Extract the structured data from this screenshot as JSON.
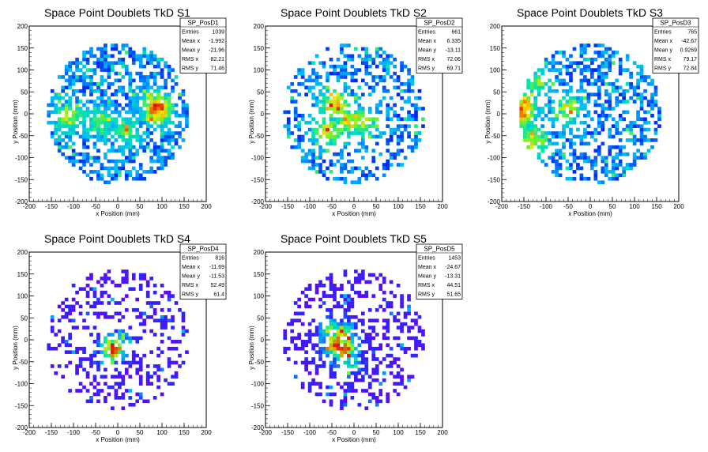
{
  "chart_data": [
    {
      "type": "heatmap",
      "title": "Space Point Doublets TkD S1",
      "xlabel": "x Position (mm)",
      "ylabel": "y Position (mm)",
      "xlim": [
        -200,
        200
      ],
      "ylim": [
        -200,
        200
      ],
      "xticks": [
        -200,
        -150,
        -100,
        -50,
        0,
        50,
        100,
        150,
        200
      ],
      "yticks": [
        -200,
        -150,
        -100,
        -50,
        0,
        50,
        100,
        150,
        200
      ],
      "palette": "rainbow",
      "stats": {
        "name": "SP_PosD1",
        "rows": [
          {
            "label": "Entries",
            "value": "1039"
          },
          {
            "label": "Mean x",
            "value": "-1.992"
          },
          {
            "label": "Mean y",
            "value": "-21.96"
          },
          {
            "label": "RMS x",
            "value": "82.21"
          },
          {
            "label": "RMS y",
            "value": "71.46"
          }
        ]
      },
      "hotspots": [
        [
          90,
          10,
          1.0
        ],
        [
          -110,
          -10,
          0.6
        ],
        [
          -40,
          -20,
          0.55
        ],
        [
          20,
          -40,
          0.5
        ],
        [
          80,
          20,
          0.7
        ]
      ],
      "density": 0.55
    },
    {
      "type": "heatmap",
      "title": "Space Point Doublets TkD S2",
      "xlabel": "x Position (mm)",
      "ylabel": "y Position (mm)",
      "xlim": [
        -200,
        200
      ],
      "ylim": [
        -200,
        200
      ],
      "xticks": [
        -200,
        -150,
        -100,
        -50,
        0,
        50,
        100,
        150,
        200
      ],
      "yticks": [
        -200,
        -150,
        -100,
        -50,
        0,
        50,
        100,
        150,
        200
      ],
      "palette": "rainbow",
      "stats": {
        "name": "SP_PosD2",
        "rows": [
          {
            "label": "Entries",
            "value": "661"
          },
          {
            "label": "Mean x",
            "value": "6.335"
          },
          {
            "label": "Mean y",
            "value": "-13.11"
          },
          {
            "label": "RMS x",
            "value": "72.06"
          },
          {
            "label": "RMS y",
            "value": "69.71"
          }
        ]
      },
      "hotspots": [
        [
          -40,
          20,
          0.8
        ],
        [
          -10,
          -15,
          0.7
        ],
        [
          20,
          -20,
          0.6
        ],
        [
          -60,
          -40,
          0.7
        ]
      ],
      "density": 0.4
    },
    {
      "type": "heatmap",
      "title": "Space Point Doublets TkD S3",
      "xlabel": "x Position (mm)",
      "ylabel": "y Position (mm)",
      "xlim": [
        -200,
        200
      ],
      "ylim": [
        -200,
        200
      ],
      "xticks": [
        -200,
        -150,
        -100,
        -50,
        0,
        50,
        100,
        150,
        200
      ],
      "yticks": [
        -200,
        -150,
        -100,
        -50,
        0,
        50,
        100,
        150,
        200
      ],
      "palette": "rainbow",
      "stats": {
        "name": "SP_PosD3",
        "rows": [
          {
            "label": "Entries",
            "value": "765"
          },
          {
            "label": "Mean x",
            "value": "-42.67"
          },
          {
            "label": "Mean y",
            "value": "0.9269"
          },
          {
            "label": "RMS x",
            "value": "79.17"
          },
          {
            "label": "RMS y",
            "value": "72.84"
          }
        ]
      },
      "hotspots": [
        [
          -160,
          0,
          1.0
        ],
        [
          -150,
          20,
          0.8
        ],
        [
          -130,
          -60,
          0.7
        ],
        [
          -50,
          10,
          0.6
        ],
        [
          -120,
          70,
          0.5
        ]
      ],
      "density": 0.45
    },
    {
      "type": "heatmap",
      "title": "Space Point Doublets TkD S4",
      "xlabel": "x Position (mm)",
      "ylabel": "y Position (mm)",
      "xlim": [
        -200,
        200
      ],
      "ylim": [
        -200,
        200
      ],
      "xticks": [
        -200,
        -150,
        -100,
        -50,
        0,
        50,
        100,
        150,
        200
      ],
      "yticks": [
        -200,
        -150,
        -100,
        -50,
        0,
        50,
        100,
        150,
        200
      ],
      "palette": "violet",
      "stats": {
        "name": "SP_PosD4",
        "rows": [
          {
            "label": "Entries",
            "value": "816"
          },
          {
            "label": "Mean x",
            "value": "-11.69"
          },
          {
            "label": "Mean y",
            "value": "-11.53"
          },
          {
            "label": "RMS x",
            "value": "52.49"
          },
          {
            "label": "RMS y",
            "value": "61.4"
          }
        ]
      },
      "hotspots": [
        [
          -10,
          -20,
          1.0
        ],
        [
          0,
          -10,
          0.7
        ],
        [
          -20,
          -30,
          0.5
        ]
      ],
      "density": 0.3
    },
    {
      "type": "heatmap",
      "title": "Space Point Doublets TkD S5",
      "xlabel": "x Position (mm)",
      "ylabel": "y Position (mm)",
      "xlim": [
        -200,
        200
      ],
      "ylim": [
        -200,
        200
      ],
      "xticks": [
        -200,
        -150,
        -100,
        -50,
        0,
        50,
        100,
        150,
        200
      ],
      "yticks": [
        -200,
        -150,
        -100,
        -50,
        0,
        50,
        100,
        150,
        200
      ],
      "palette": "violet",
      "stats": {
        "name": "SP_PosD5",
        "rows": [
          {
            "label": "Entries",
            "value": "1453"
          },
          {
            "label": "Mean x",
            "value": "-24.67"
          },
          {
            "label": "Mean y",
            "value": "-13.31"
          },
          {
            "label": "RMS x",
            "value": "44.51"
          },
          {
            "label": "RMS y",
            "value": "51.65"
          }
        ]
      },
      "hotspots": [
        [
          -40,
          -10,
          1.0
        ],
        [
          -30,
          10,
          0.9
        ],
        [
          -20,
          -20,
          0.95
        ],
        [
          -50,
          20,
          0.7
        ],
        [
          -10,
          -50,
          0.6
        ]
      ],
      "density": 0.35
    }
  ]
}
